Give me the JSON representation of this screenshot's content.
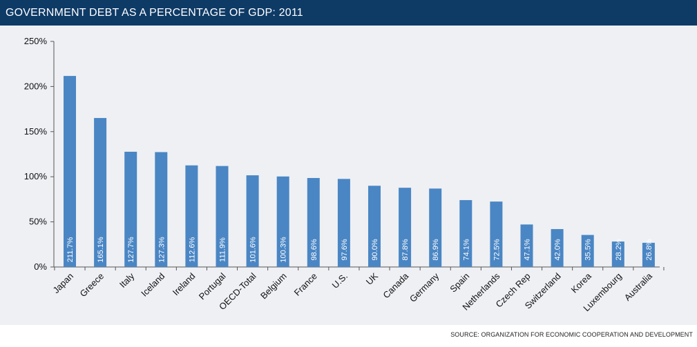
{
  "chart_data": {
    "type": "bar",
    "title": "GOVERNMENT DEBT AS A PERCENTAGE OF GDP: 2011",
    "xlabel": "",
    "ylabel": "",
    "ylim": [
      0,
      250
    ],
    "yticks": [
      "0%",
      "50%",
      "100%",
      "150%",
      "200%",
      "250%"
    ],
    "categories": [
      "Japan",
      "Greece",
      "Italy",
      "Iceland",
      "Ireland",
      "Portugal",
      "OECD-Total",
      "Belgium",
      "France",
      "U.S.",
      "UK",
      "Canada",
      "Germany",
      "Spain",
      "Netherlands",
      "Czech Rep",
      "Switzerland",
      "Korea",
      "Luxembourg",
      "Australia"
    ],
    "values": [
      211.7,
      165.1,
      127.7,
      127.3,
      112.6,
      111.9,
      101.6,
      100.3,
      98.6,
      97.6,
      90.0,
      87.8,
      86.9,
      74.1,
      72.5,
      47.1,
      42.0,
      35.5,
      28.2,
      26.8
    ],
    "data_labels": [
      "211.7%",
      "165.1%",
      "127.7%",
      "127.3%",
      "112.6%",
      "111.9%",
      "101.6%",
      "100.3%",
      "98.6%",
      "97.6%",
      "90.0%",
      "87.8%",
      "86.9%",
      "74.1%",
      "72.5%",
      "47.1%",
      "42.0%",
      "35.5%",
      "28.2%",
      "26.8%"
    ],
    "grid": false,
    "legend": "none",
    "bar_color": "#4a86c4",
    "source": "SOURCE: ORGANIZATION FOR ECONOMIC COOPERATION AND DEVELOPMENT"
  },
  "colors": {
    "title_bar": "#0e3a66",
    "plot_background": "#eef0f4",
    "bar": "#4a86c4"
  }
}
